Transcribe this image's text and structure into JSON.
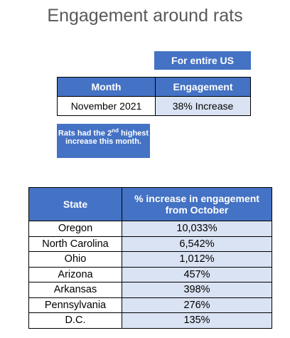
{
  "title": "Engagement around rats",
  "scope_label": "For entire US",
  "summary_table": {
    "header": [
      "Month",
      "Engagement"
    ],
    "rows": [
      [
        "November 2021",
        "38% Increase"
      ]
    ]
  },
  "note": {
    "before": "Rats had the 2",
    "superscript": "nd",
    "after": "highest increase this month."
  },
  "state_table": {
    "header": [
      "State",
      "% increase in engagement from October"
    ],
    "rows": [
      [
        "Oregon",
        "10,033%"
      ],
      [
        "North Carolina",
        "6,542%"
      ],
      [
        "Ohio",
        "1,012%"
      ],
      [
        "Arizona",
        "457%"
      ],
      [
        "Arkansas",
        "398%"
      ],
      [
        "Pennsylvania",
        "276%"
      ],
      [
        "D.C.",
        "135%"
      ]
    ]
  }
}
